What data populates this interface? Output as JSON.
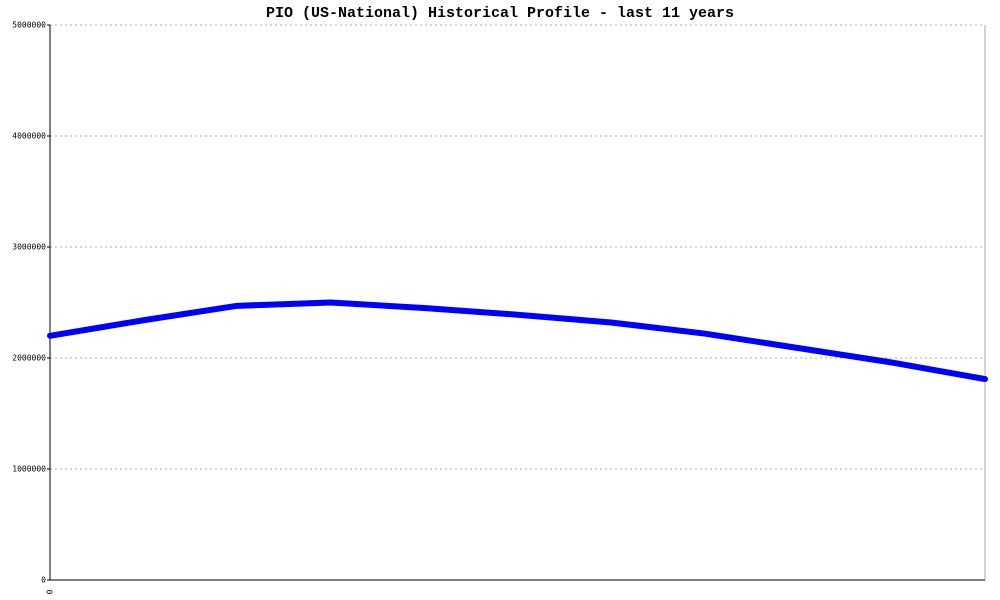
{
  "chart_data": {
    "type": "line",
    "title": "PIO (US-National) Historical Profile - last 11 years",
    "categories": [
      "0",
      null,
      null,
      null,
      null,
      null,
      null,
      null,
      null,
      null,
      null
    ],
    "series": [
      {
        "name": "PIO",
        "color": "#0000ff",
        "values": [
          2200000,
          2340000,
          2470000,
          2500000,
          2450000,
          2390000,
          2320000,
          2220000,
          2090000,
          1960000,
          1810000
        ]
      }
    ],
    "ylim": [
      0,
      5000000
    ],
    "yticks": [
      0,
      1000000,
      2000000,
      3000000,
      4000000,
      5000000
    ],
    "grid": true
  }
}
